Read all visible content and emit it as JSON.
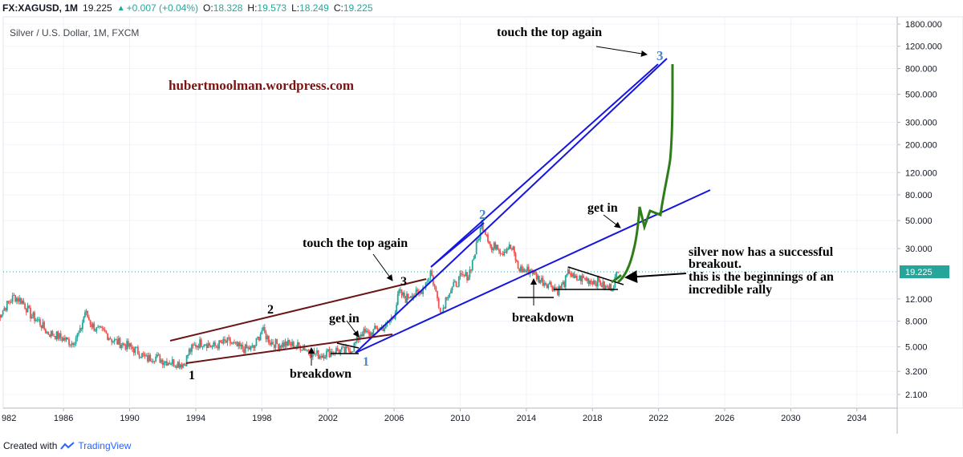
{
  "header": {
    "symbol": "FX:XAGUSD, 1M",
    "last": "19.225",
    "change": "+0.007 (+0.04%)",
    "o_label": "O:",
    "o_value": "18.328",
    "h_label": "H:",
    "h_value": "19.573",
    "l_label": "L:",
    "l_value": "18.249",
    "c_label": "C:",
    "c_value": "19.225"
  },
  "footer": {
    "created_with": "Created with",
    "brand": "TradingView"
  },
  "colors": {
    "up": "#26a69a",
    "down": "#ef5350",
    "channel_blue": "#1515e0",
    "channel_brown": "#6b1515",
    "projection_green": "#2e7d1a",
    "watermark": "#7b1313"
  },
  "chart_data": {
    "type": "candlestick",
    "title": "Silver / U.S. Dollar, 1M, FXCM",
    "x_scale": "time (years)",
    "y_scale": "log",
    "xlim": [
      1982,
      2036
    ],
    "ylim": [
      1.8,
      1800
    ],
    "x_ticks": [
      "982",
      "1986",
      "1990",
      "1994",
      "1998",
      "2002",
      "2006",
      "2010",
      "2014",
      "2018",
      "2022",
      "2026",
      "2030",
      "2034"
    ],
    "y_ticks": [
      "1800.000",
      "1200.000",
      "800.000",
      "500.000",
      "300.000",
      "200.000",
      "120.000",
      "80.000",
      "50.000",
      "30.000",
      "12.000",
      "8.000",
      "5.000",
      "3.200",
      "2.100"
    ],
    "last_price_label": "19.225",
    "series": [
      {
        "values": [
          [
            1982.0,
            8.5
          ],
          [
            1982.5,
            10.5
          ],
          [
            1983.0,
            12.5
          ],
          [
            1983.5,
            11.5
          ],
          [
            1984.0,
            9.0
          ],
          [
            1984.5,
            8.0
          ],
          [
            1985.0,
            6.5
          ],
          [
            1985.5,
            6.2
          ],
          [
            1986.0,
            5.8
          ],
          [
            1986.5,
            5.4
          ],
          [
            1987.0,
            6.5
          ],
          [
            1987.3,
            9.5
          ],
          [
            1987.7,
            7.5
          ],
          [
            1988.0,
            6.8
          ],
          [
            1988.5,
            6.5
          ],
          [
            1989.0,
            5.6
          ],
          [
            1989.5,
            5.3
          ],
          [
            1990.0,
            5.0
          ],
          [
            1990.5,
            4.6
          ],
          [
            1991.0,
            4.0
          ],
          [
            1991.5,
            4.2
          ],
          [
            1992.0,
            3.9
          ],
          [
            1992.5,
            3.8
          ],
          [
            1993.0,
            3.7
          ],
          [
            1993.3,
            3.65
          ],
          [
            1993.6,
            4.6
          ],
          [
            1994.0,
            5.2
          ],
          [
            1994.5,
            5.5
          ],
          [
            1995.0,
            5.0
          ],
          [
            1995.5,
            5.3
          ],
          [
            1996.0,
            5.5
          ],
          [
            1996.5,
            5.0
          ],
          [
            1997.0,
            4.8
          ],
          [
            1997.5,
            4.9
          ],
          [
            1998.0,
            6.8
          ],
          [
            1998.5,
            5.5
          ],
          [
            1999.0,
            5.2
          ],
          [
            1999.5,
            5.3
          ],
          [
            2000.0,
            5.1
          ],
          [
            2000.5,
            5.0
          ],
          [
            2001.0,
            4.5
          ],
          [
            2001.5,
            4.3
          ],
          [
            2002.0,
            4.5
          ],
          [
            2002.5,
            4.7
          ],
          [
            2003.0,
            4.6
          ],
          [
            2003.5,
            4.9
          ],
          [
            2004.0,
            6.5
          ],
          [
            2004.5,
            6.3
          ],
          [
            2005.0,
            7.0
          ],
          [
            2005.5,
            7.2
          ],
          [
            2006.0,
            9.0
          ],
          [
            2006.3,
            13.5
          ],
          [
            2006.7,
            12.0
          ],
          [
            2007.0,
            13.2
          ],
          [
            2007.5,
            13.0
          ],
          [
            2008.0,
            17.0
          ],
          [
            2008.2,
            20.0
          ],
          [
            2008.7,
            11.0
          ],
          [
            2008.9,
            9.5
          ],
          [
            2009.2,
            13.0
          ],
          [
            2009.6,
            15.0
          ],
          [
            2010.0,
            17.5
          ],
          [
            2010.5,
            18.5
          ],
          [
            2010.9,
            28.0
          ],
          [
            2011.3,
            47.0
          ],
          [
            2011.6,
            40.0
          ],
          [
            2011.9,
            29.0
          ],
          [
            2012.2,
            33.0
          ],
          [
            2012.5,
            28.0
          ],
          [
            2012.9,
            31.0
          ],
          [
            2013.2,
            29.0
          ],
          [
            2013.5,
            21.0
          ],
          [
            2013.9,
            20.0
          ],
          [
            2014.3,
            20.5
          ],
          [
            2014.7,
            17.5
          ],
          [
            2015.0,
            16.5
          ],
          [
            2015.5,
            15.5
          ],
          [
            2015.9,
            14.0
          ],
          [
            2016.3,
            16.0
          ],
          [
            2016.6,
            20.0
          ],
          [
            2016.9,
            17.0
          ],
          [
            2017.3,
            17.5
          ],
          [
            2017.7,
            17.0
          ],
          [
            2018.0,
            16.8
          ],
          [
            2018.4,
            16.3
          ],
          [
            2018.8,
            14.5
          ],
          [
            2019.2,
            15.0
          ],
          [
            2019.45,
            18.3
          ],
          [
            2019.55,
            19.225
          ]
        ]
      }
    ],
    "annotations": [
      {
        "text": "hubertmoolman.wordpress.com"
      },
      {
        "text": "touch the top again"
      },
      {
        "text": "touch the top again"
      },
      {
        "text": "get in"
      },
      {
        "text": "get in"
      },
      {
        "text": "breakdown"
      },
      {
        "text": "breakdown"
      },
      {
        "text": "silver now has a successful"
      },
      {
        "text": "breakout."
      },
      {
        "text": "this is the beginnings of an"
      },
      {
        "text": "incredible rally"
      },
      {
        "text": "1"
      },
      {
        "text": "2"
      },
      {
        "text": "3"
      },
      {
        "text": "1"
      },
      {
        "text": "2"
      },
      {
        "text": "3"
      }
    ]
  }
}
